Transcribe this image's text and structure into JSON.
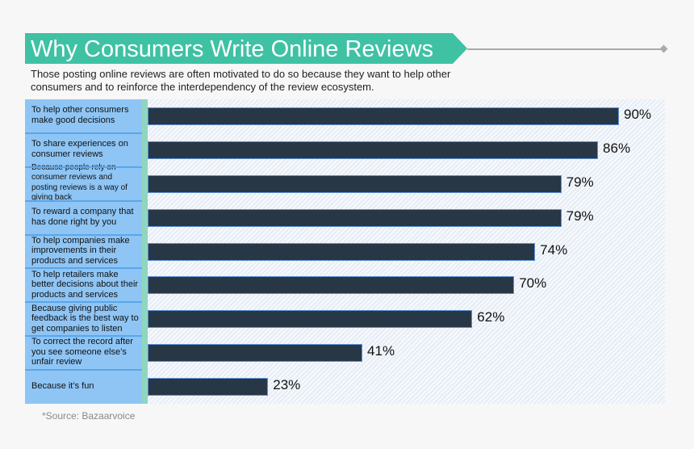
{
  "header": {
    "title": "Why Consumers Write Online Reviews",
    "subtitle": "Those posting online reviews are often motivated to do so because they want to help other consumers and to reinforce the interdependency of the review ecosystem."
  },
  "footer": {
    "source": "*Source: Bazaarvoice"
  },
  "colors": {
    "banner": "#3fc1a4",
    "bar": "#273746",
    "label_bg": "#8ec5f5"
  },
  "chart_data": {
    "type": "bar",
    "orientation": "horizontal",
    "xlim": [
      0,
      100
    ],
    "grid": false,
    "categories": [
      "To help other consumers make good decisions",
      "To share experiences on consumer reviews",
      "Because people rely on consumer reviews and posting reviews is a way of giving back",
      "To reward a company that has done right by you",
      "To help companies make improvements in their products and services",
      "To help retailers make better decisions about their products and services",
      "Because giving public feedback is the best way to get companies to listen",
      "To correct the record after you see someone else’s unfair review",
      "Because it’s fun"
    ],
    "values": [
      90,
      86,
      79,
      79,
      74,
      70,
      62,
      41,
      23
    ],
    "data_labels": [
      "90%",
      "86%",
      "79%",
      "79%",
      "74%",
      "70%",
      "62%",
      "41%",
      "23%"
    ]
  }
}
